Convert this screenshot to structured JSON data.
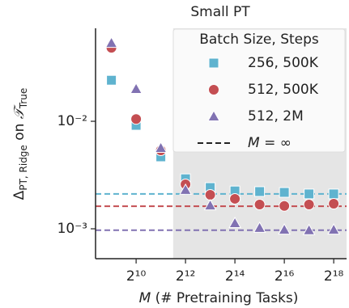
{
  "chart_data": {
    "type": "scatter",
    "title": "Small PT",
    "x_label_var": "M",
    "x_label": "(# Pretraining Tasks)",
    "y_label": {
      "base": "Δ",
      "sub": "PT, Ridge",
      "mid": " on ",
      "set": "𝒯",
      "sub2": "True"
    },
    "x": [
      512,
      1024,
      2048,
      4096,
      8192,
      16384,
      32768,
      65536,
      131072,
      262144
    ],
    "series": [
      {
        "name": "256, 500K",
        "color": "#5fb3cf",
        "marker": "square",
        "values": [
          0.0241,
          0.00917,
          0.00467,
          0.00292,
          0.00242,
          0.00225,
          0.00222,
          0.00218,
          0.00211,
          0.00211
        ]
      },
      {
        "name": "512, 500K",
        "color": "#c44e52",
        "marker": "circle",
        "values": [
          0.0483,
          0.0105,
          0.00536,
          0.00259,
          0.00207,
          0.0019,
          0.00168,
          0.00163,
          0.00168,
          0.00171
        ]
      },
      {
        "name": "512, 2M",
        "color": "#8172b2",
        "marker": "triangle",
        "values": [
          0.0535,
          0.02,
          0.00565,
          0.0023,
          0.00165,
          0.00113,
          0.00102,
          0.00098,
          0.00097,
          0.00098
        ]
      }
    ],
    "infinite_M": {
      "name": "M = ∞",
      "color": "#222222",
      "values": [
        0.00211,
        0.00162,
        0.00097
      ]
    },
    "legend_title": "Batch Size, Steps",
    "legend": "upper right",
    "shade_from": 2896,
    "shade_color": "#e5e5e5",
    "xscale": "log2",
    "yscale": "log",
    "xlim": [
      328,
      376000
    ],
    "ylim": [
      0.000527,
      0.0733
    ],
    "xticks": [
      {
        "value": 1024,
        "label": "2¹⁰"
      },
      {
        "value": 4096,
        "label": "2¹²"
      },
      {
        "value": 16384,
        "label": "2¹⁴"
      },
      {
        "value": 65536,
        "label": "2¹⁶"
      },
      {
        "value": 262144,
        "label": "2¹⁸"
      }
    ],
    "yticks": [
      {
        "value": 0.01,
        "label": "10⁻²"
      },
      {
        "value": 0.001,
        "label": "10⁻³"
      }
    ]
  }
}
